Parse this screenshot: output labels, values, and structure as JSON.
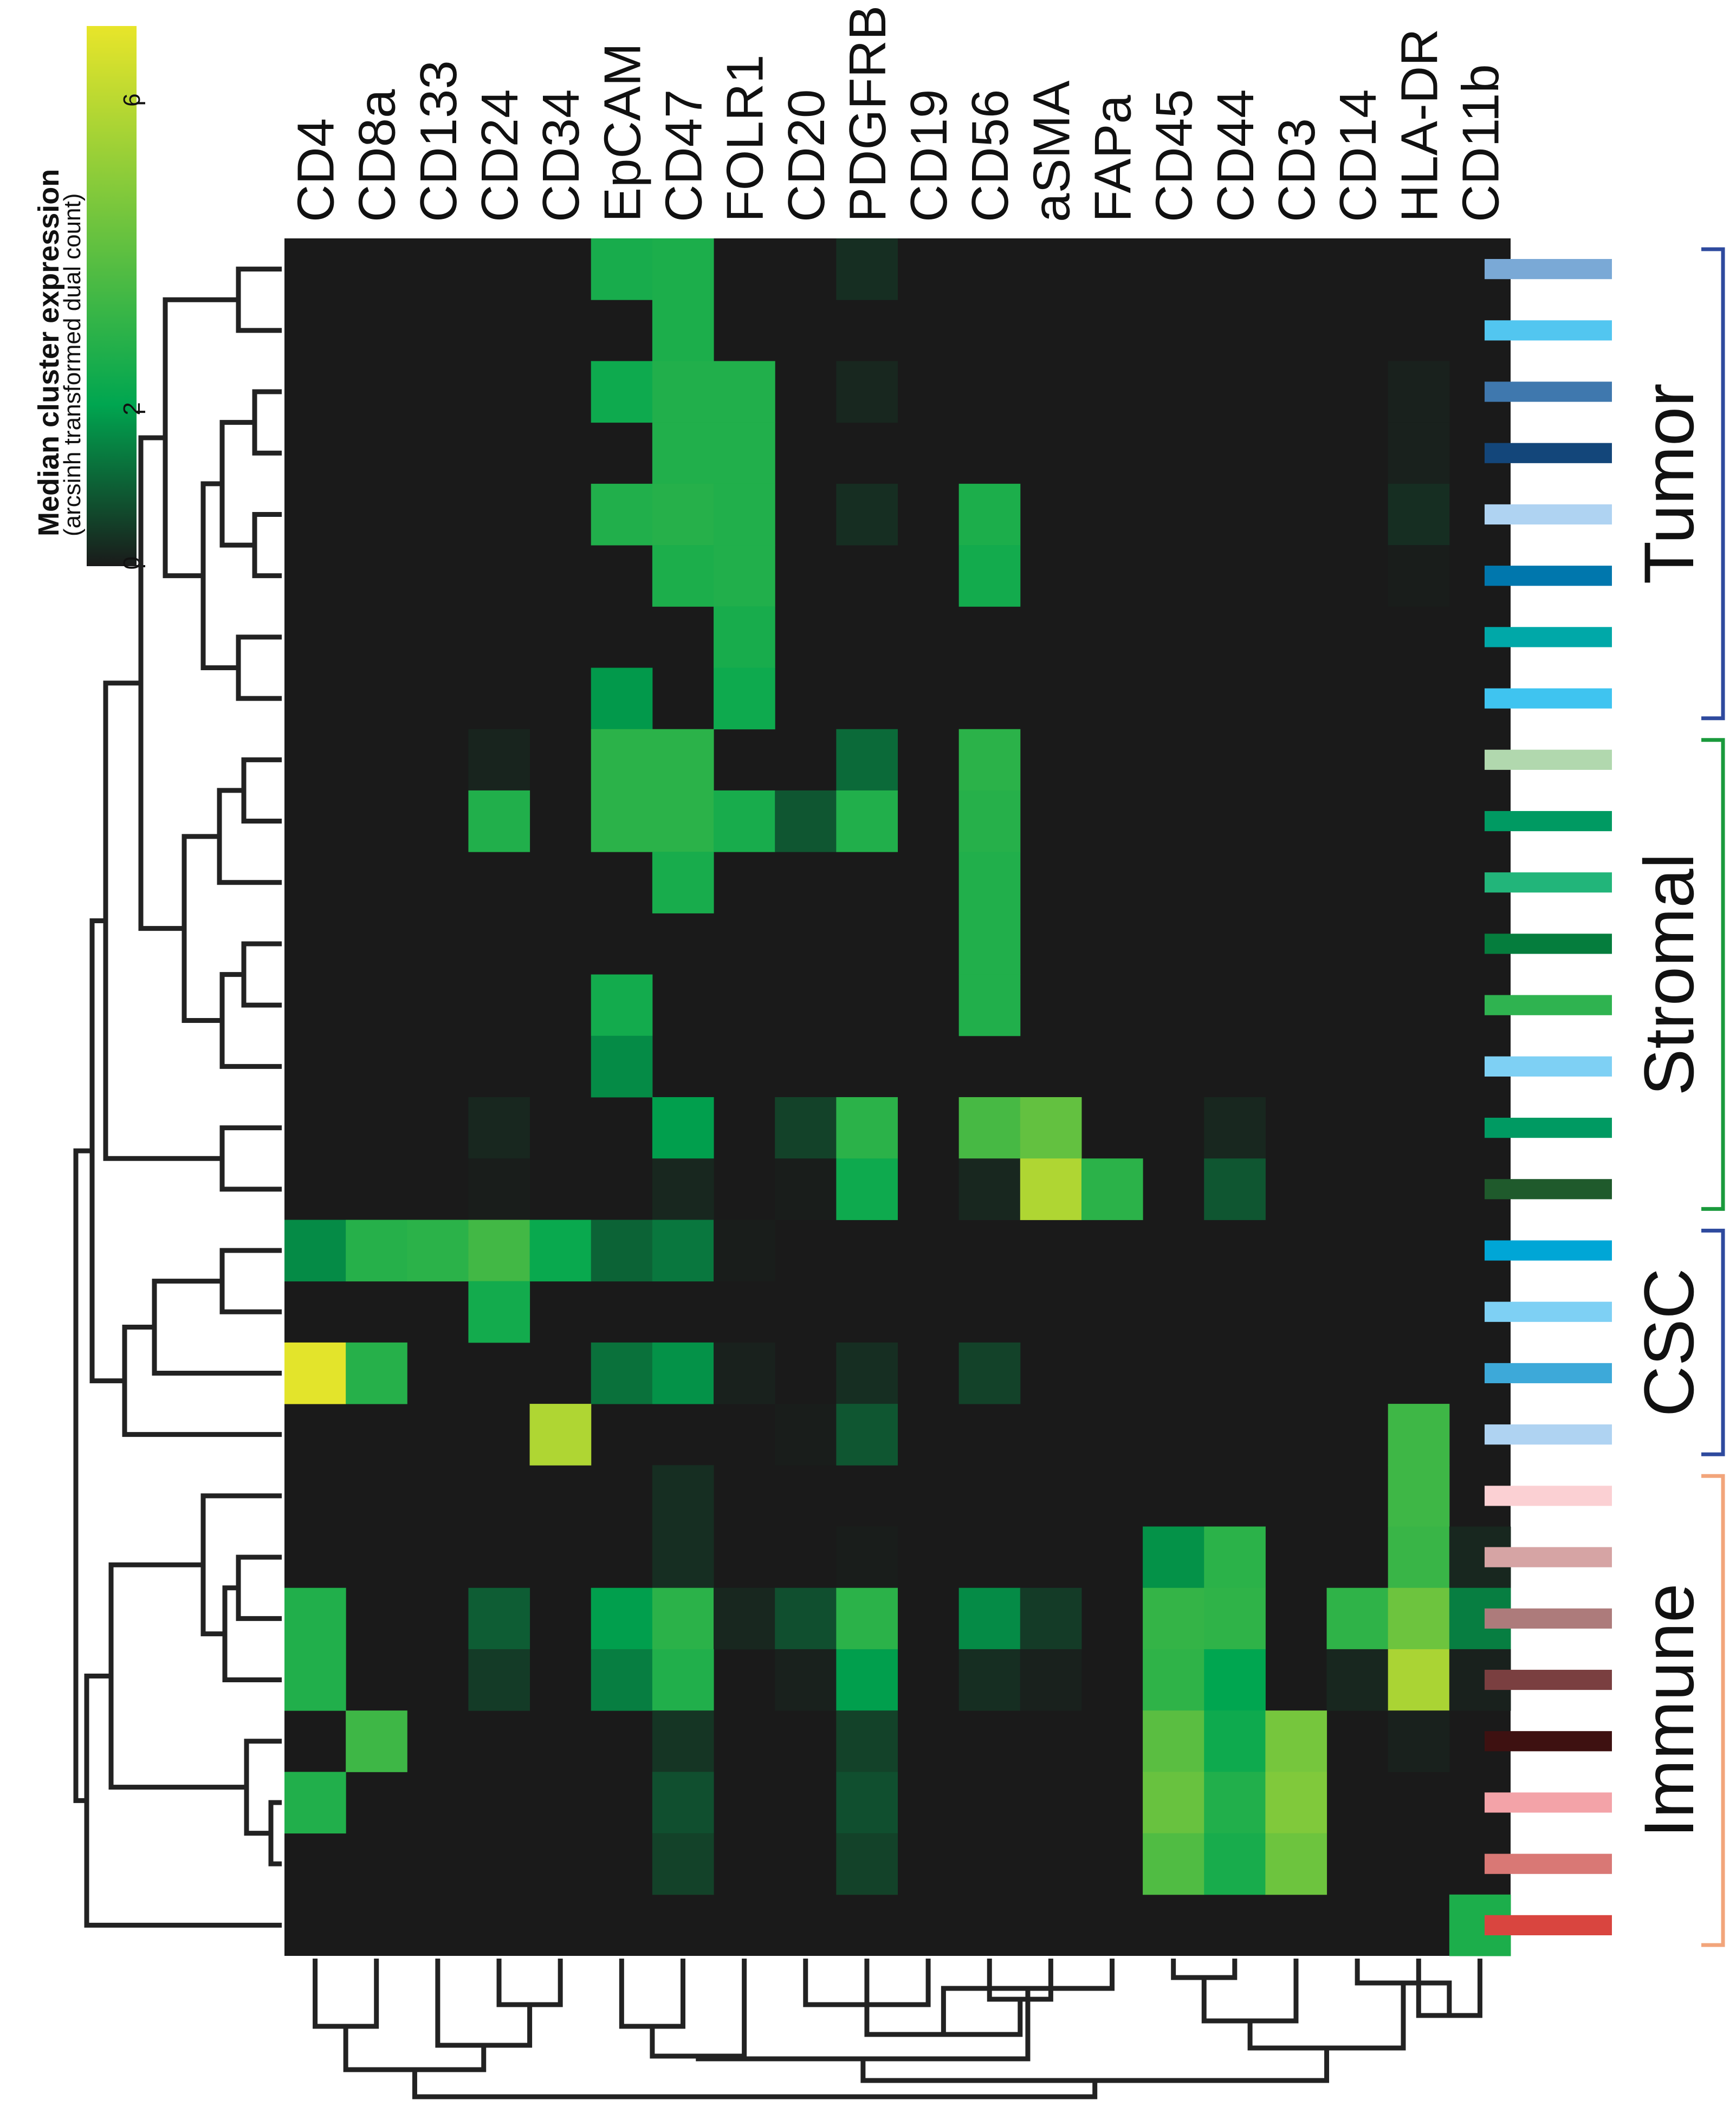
{
  "chart_data": {
    "type": "heatmap",
    "title": "",
    "colorbar": {
      "title": "Median cluster expression",
      "subtitle": "(arcsinh transformed dual count)",
      "ticks": [
        0,
        2,
        6
      ],
      "range": [
        0,
        7
      ],
      "colors": [
        "#1a1a1a",
        "#00a650",
        "#e8e52a"
      ]
    },
    "columns": [
      "CD4",
      "CD8a",
      "CD133",
      "CD24",
      "CD34",
      "EpCAM",
      "CD47",
      "FOLR1",
      "CD20",
      "PDGFRB",
      "CD19",
      "CD56",
      "aSMA",
      "FAPa",
      "CD45",
      "CD44",
      "CD3",
      "CD14",
      "HLA-DR",
      "CD11b"
    ],
    "row_colors": [
      "#7aa9d6",
      "#52c6f0",
      "#3f78ae",
      "#13467a",
      "#afd3f2",
      "#0077ad",
      "#00a8a8",
      "#3fc4f0",
      "#b1d8ae",
      "#009a62",
      "#22b57a",
      "#057d3d",
      "#2fb350",
      "#7ed0f4",
      "#009a62",
      "#1f5a2c",
      "#00a6d6",
      "#7ed0f4",
      "#3da9d9",
      "#afd3f2",
      "#fbd0d3",
      "#d6a4a4",
      "#ad7b7b",
      "#7a3f40",
      "#3e1111",
      "#f3a3a8",
      "#d97875",
      "#d9453f"
    ],
    "groups": [
      {
        "label": "Tumor",
        "start": 0,
        "end": 7,
        "color": "#2e4a9e"
      },
      {
        "label": "Stromal",
        "start": 8,
        "end": 15,
        "color": "#1a9a3c"
      },
      {
        "label": "CSC",
        "start": 16,
        "end": 19,
        "color": "#2e4a9e"
      },
      {
        "label": "Immune",
        "start": 20,
        "end": 27,
        "color": "#f2a57b"
      }
    ],
    "values": [
      [
        0,
        0,
        0,
        0,
        0,
        2.6,
        2.7,
        0,
        0,
        0.3,
        0,
        0,
        0,
        0,
        0,
        0,
        0,
        0,
        0,
        0
      ],
      [
        0,
        0,
        0,
        0,
        0,
        0,
        2.7,
        0,
        0,
        0,
        0,
        0,
        0,
        0,
        0,
        0,
        0,
        0,
        0,
        0
      ],
      [
        0,
        0,
        0,
        0,
        0,
        2.4,
        2.8,
        2.8,
        0,
        0.2,
        0,
        0,
        0,
        0,
        0,
        0,
        0,
        0,
        0.1,
        0
      ],
      [
        0,
        0,
        0,
        0,
        0,
        0,
        2.8,
        2.8,
        0,
        0,
        0,
        0,
        0,
        0,
        0,
        0,
        0,
        0,
        0.1,
        0
      ],
      [
        0,
        0,
        0,
        0,
        0,
        2.8,
        2.9,
        2.8,
        0,
        0.3,
        0,
        2.7,
        0,
        0,
        0,
        0,
        0,
        0,
        0.3,
        0
      ],
      [
        0,
        0,
        0,
        0,
        0,
        0,
        2.7,
        2.8,
        0,
        0,
        0,
        2.5,
        0,
        0,
        0,
        0,
        0,
        0,
        0.05,
        0
      ],
      [
        0,
        0,
        0,
        0,
        0,
        0,
        0,
        2.6,
        0,
        0,
        0,
        0,
        0,
        0,
        0,
        0,
        0,
        0,
        0,
        0
      ],
      [
        0,
        0,
        0,
        0,
        0,
        1.9,
        0,
        2.4,
        0,
        0,
        0,
        0,
        0,
        0,
        0,
        0,
        0,
        0,
        0,
        0
      ],
      [
        0,
        0,
        0,
        0.15,
        0,
        3.0,
        3.0,
        0,
        0,
        1.2,
        0,
        3.0,
        0,
        0,
        0,
        0,
        0,
        0,
        0,
        0
      ],
      [
        0,
        0,
        0,
        2.8,
        0,
        3.0,
        3.0,
        2.6,
        0.9,
        2.8,
        0,
        2.9,
        0,
        0,
        0,
        0,
        0,
        0,
        0,
        0
      ],
      [
        0,
        0,
        0,
        0,
        0,
        0,
        2.6,
        0,
        0,
        0,
        0,
        2.8,
        0,
        0,
        0,
        0,
        0,
        0,
        0,
        0
      ],
      [
        0,
        0,
        0,
        0,
        0,
        0,
        0,
        0,
        0,
        0,
        0,
        2.8,
        0,
        0,
        0,
        0,
        0,
        0,
        0,
        0
      ],
      [
        0,
        0,
        0,
        0,
        0,
        2.5,
        0,
        0,
        0,
        0,
        0,
        2.8,
        0,
        0,
        0,
        0,
        0,
        0,
        0,
        0
      ],
      [
        0,
        0,
        0,
        0,
        0,
        1.7,
        0,
        0,
        0,
        0,
        0,
        0,
        0,
        0,
        0,
        0,
        0,
        0,
        0,
        0
      ],
      [
        0,
        0,
        0,
        0.2,
        0,
        0,
        2.0,
        0,
        0.6,
        3.0,
        0,
        3.6,
        4.2,
        0,
        0,
        0.2,
        0,
        0,
        0,
        0
      ],
      [
        0,
        0,
        0,
        0.05,
        0,
        0,
        0.2,
        0,
        0.05,
        2.4,
        0,
        0.2,
        5.8,
        3.0,
        0,
        0.9,
        0,
        0,
        0,
        0
      ],
      [
        1.7,
        2.9,
        3.0,
        3.5,
        2.3,
        1.1,
        1.4,
        0.05,
        0,
        0,
        0,
        0,
        0,
        0,
        0,
        0,
        0,
        0,
        0,
        0
      ],
      [
        0,
        0,
        0,
        2.5,
        0,
        0,
        0,
        0,
        0,
        0,
        0,
        0,
        0,
        0,
        0,
        0,
        0,
        0,
        0,
        0
      ],
      [
        6.9,
        2.9,
        0,
        0,
        0,
        1.3,
        1.8,
        0.1,
        0,
        0.3,
        0,
        0.6,
        0,
        0,
        0,
        0,
        0,
        0,
        0,
        0
      ],
      [
        0,
        0,
        0,
        0,
        5.8,
        0,
        0,
        0,
        0.05,
        0.9,
        0,
        0,
        0,
        0,
        0,
        0,
        0,
        0,
        3.4,
        0
      ],
      [
        0,
        0,
        0,
        0,
        0,
        0,
        0.3,
        0,
        0,
        0,
        0,
        0,
        0,
        0,
        0,
        0,
        0,
        0,
        3.4,
        0
      ],
      [
        0,
        0,
        0,
        0,
        0,
        0,
        0.3,
        0,
        0,
        0.05,
        0,
        0,
        0,
        0,
        1.8,
        3.0,
        0,
        0,
        3.3,
        0.2
      ],
      [
        2.8,
        0,
        0,
        1.0,
        0,
        2.0,
        3.0,
        0.2,
        0.8,
        3.0,
        0,
        1.7,
        0.5,
        0,
        3.2,
        3.1,
        0,
        3.1,
        4.4,
        1.5
      ],
      [
        2.8,
        0,
        0,
        0.5,
        0,
        1.5,
        2.8,
        0,
        0.1,
        2.0,
        0,
        0.3,
        0.1,
        0,
        3.1,
        2.1,
        0,
        0.2,
        5.7,
        0.1
      ],
      [
        0,
        3.4,
        0,
        0,
        0,
        0,
        0.4,
        0,
        0,
        0.6,
        0,
        0,
        0,
        0,
        4.0,
        2.4,
        4.6,
        0,
        0.1,
        0
      ],
      [
        2.8,
        0,
        0,
        0,
        0,
        0,
        0.8,
        0,
        0,
        0.8,
        0,
        0,
        0,
        0,
        4.3,
        2.8,
        4.8,
        0,
        0,
        0
      ],
      [
        0,
        0,
        0,
        0,
        0,
        0,
        0.6,
        0,
        0,
        0.6,
        0,
        0,
        0,
        0,
        3.8,
        2.6,
        4.4,
        0,
        0,
        0
      ],
      [
        0,
        0,
        0,
        0,
        0,
        0,
        0,
        0,
        0,
        0,
        0,
        0,
        0,
        0,
        0,
        0,
        0,
        0,
        0,
        2.7
      ]
    ]
  }
}
